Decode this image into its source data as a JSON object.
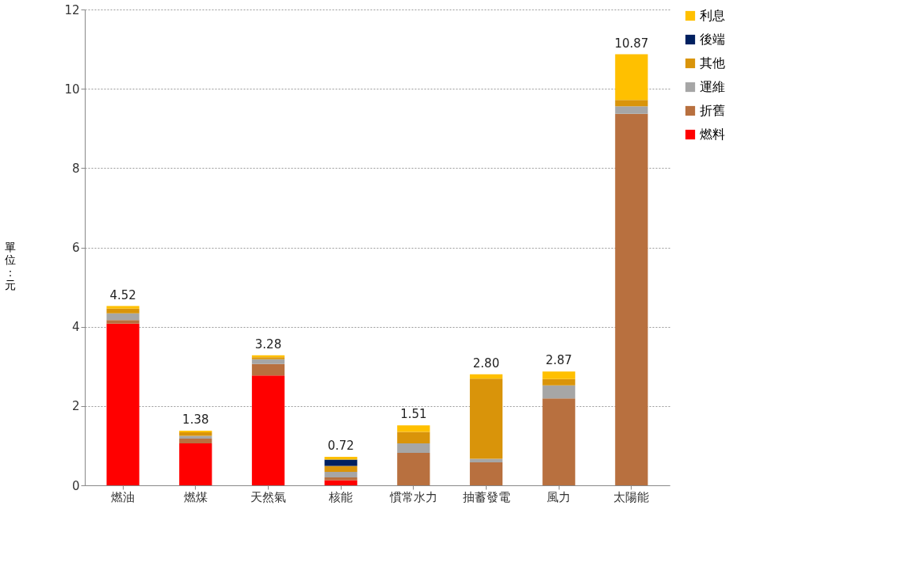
{
  "chart_data": {
    "type": "bar",
    "stacked": true,
    "ylabel": "單位：元",
    "categories": [
      "燃油",
      "燃煤",
      "天然氣",
      "核能",
      "慣常水力",
      "抽蓄發電",
      "風力",
      "太陽能"
    ],
    "series": [
      {
        "name": "燃料",
        "color": "#ff0000",
        "values": [
          4.08,
          1.06,
          2.77,
          0.13,
          0,
          0,
          0,
          0
        ]
      },
      {
        "name": "折舊",
        "color": "#b8703f",
        "values": [
          0.09,
          0.12,
          0.29,
          0.07,
          0.82,
          0.58,
          2.19,
          9.37
        ]
      },
      {
        "name": "運維",
        "color": "#a6a6a6",
        "values": [
          0.17,
          0.07,
          0.12,
          0.14,
          0.24,
          0.09,
          0.33,
          0.19
        ]
      },
      {
        "name": "其他",
        "color": "#d9940a",
        "values": [
          0.12,
          0.09,
          0.05,
          0.15,
          0.29,
          2.02,
          0.16,
          0.16
        ]
      },
      {
        "name": "後端",
        "color": "#002060",
        "values": [
          0,
          0,
          0,
          0.16,
          0,
          0,
          0,
          0
        ]
      },
      {
        "name": "利息",
        "color": "#ffc000",
        "values": [
          0.06,
          0.04,
          0.05,
          0.07,
          0.16,
          0.11,
          0.19,
          1.15
        ]
      }
    ],
    "totals": [
      "4.52",
      "1.38",
      "3.28",
      "0.72",
      "1.51",
      "2.80",
      "2.87",
      "10.87"
    ],
    "ylim": [
      0,
      12
    ],
    "yticks": [
      0,
      2,
      4,
      6,
      8,
      10,
      12
    ],
    "grid": "y",
    "legend": "right"
  }
}
